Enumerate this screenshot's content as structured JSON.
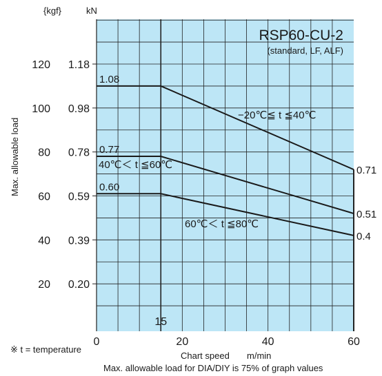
{
  "colors": {
    "plot_bg": "#bde6f6",
    "grid": "#222222",
    "line": "#1a1a1a",
    "text": "#1a1a1a"
  },
  "chart_data": {
    "type": "line",
    "title": "RSP60-CU-2",
    "subtitle": "(standard, LF, ALF)",
    "xlabel": "Chart speed",
    "xunit": "m/min",
    "ylabel": "Max. allowable load",
    "unit_kgf": "{kgf}",
    "unit_kn": "kN",
    "xlim": [
      0,
      60
    ],
    "ylim_kgf": [
      0,
      140
    ],
    "x_ticks": [
      {
        "value": 0,
        "label": "0"
      },
      {
        "value": 20,
        "label": "20"
      },
      {
        "value": 40,
        "label": "40"
      },
      {
        "value": 60,
        "label": "60"
      }
    ],
    "x_marker": {
      "value": 15,
      "label": "15"
    },
    "y_ticks": [
      {
        "kgf": 20,
        "kgf_label": "20",
        "kn_label": "0.20"
      },
      {
        "kgf": 40,
        "kgf_label": "40",
        "kn_label": "0.39"
      },
      {
        "kgf": 60,
        "kgf_label": "60",
        "kn_label": "0.59"
      },
      {
        "kgf": 80,
        "kgf_label": "80",
        "kn_label": "0.78"
      },
      {
        "kgf": 100,
        "kgf_label": "100",
        "kn_label": "0.98"
      },
      {
        "kgf": 120,
        "kgf_label": "120",
        "kn_label": "1.18"
      }
    ],
    "grid": true,
    "series": [
      {
        "name": "−20℃≦ t ≦40℃",
        "x": [
          0,
          15,
          60
        ],
        "y_kgf": [
          110,
          110,
          72
        ],
        "start_label": "1.08",
        "end_label": "0.71"
      },
      {
        "name": "40℃＜ t ≦60℃",
        "x": [
          0,
          15,
          60
        ],
        "y_kgf": [
          78,
          78,
          52
        ],
        "start_label": "0.77",
        "end_label": "0.51"
      },
      {
        "name": "60℃＜ t ≦80℃",
        "x": [
          0,
          15,
          60
        ],
        "y_kgf": [
          61,
          61,
          42
        ],
        "start_label": "0.60",
        "end_label": "0.4"
      }
    ]
  },
  "footnote": "※ t = temperature",
  "bottom_note": "Max. allowable load for DIA/DIY is 75% of graph values"
}
